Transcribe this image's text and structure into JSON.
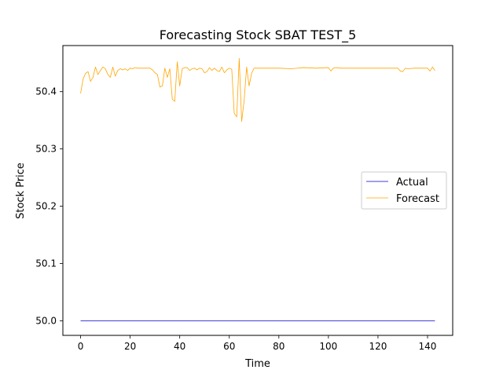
{
  "chart_data": {
    "type": "line",
    "title": "Forecasting Stock SBAT TEST_5",
    "xlabel": "Time",
    "ylabel": "Stock Price",
    "xlim": [
      -7.15,
      150.15
    ],
    "ylim": [
      49.9745,
      50.4805
    ],
    "xticks": [
      0,
      20,
      40,
      60,
      80,
      100,
      120,
      140
    ],
    "xtick_labels": [
      "0",
      "20",
      "40",
      "60",
      "80",
      "100",
      "120",
      "140"
    ],
    "yticks": [
      50.0,
      50.1,
      50.2,
      50.3,
      50.4
    ],
    "ytick_labels": [
      "50.0",
      "50.1",
      "50.2",
      "50.3",
      "50.4"
    ],
    "legend": {
      "position": "center-right",
      "entries": [
        "Actual",
        "Forecast"
      ]
    },
    "grid": false,
    "series": [
      {
        "name": "Actual",
        "color": "#0000cc",
        "x": [
          0,
          143
        ],
        "values": [
          50.0,
          50.0
        ]
      },
      {
        "name": "Forecast",
        "color": "#ffa500",
        "x": [
          0,
          1,
          2,
          3,
          4,
          5,
          6,
          7,
          8,
          9,
          10,
          11,
          12,
          13,
          14,
          15,
          16,
          17,
          18,
          19,
          20,
          21,
          22,
          23,
          24,
          25,
          26,
          27,
          28,
          29,
          30,
          31,
          32,
          33,
          34,
          35,
          36,
          37,
          38,
          39,
          40,
          41,
          42,
          43,
          44,
          45,
          46,
          47,
          48,
          49,
          50,
          51,
          52,
          53,
          54,
          55,
          56,
          57,
          58,
          59,
          60,
          61,
          62,
          63,
          64,
          65,
          66,
          67,
          68,
          69,
          70,
          75,
          80,
          85,
          90,
          95,
          100,
          101,
          102,
          103,
          105,
          110,
          115,
          120,
          125,
          128,
          129,
          130,
          131,
          132,
          135,
          140,
          141,
          142,
          143
        ],
        "values": [
          50.397,
          50.422,
          50.432,
          50.435,
          50.418,
          50.425,
          50.443,
          50.43,
          50.437,
          50.443,
          50.44,
          50.43,
          50.425,
          50.443,
          50.427,
          50.437,
          50.44,
          50.438,
          50.44,
          50.437,
          50.441,
          50.44,
          50.442,
          50.441,
          50.441,
          50.441,
          50.441,
          50.441,
          50.441,
          50.438,
          50.433,
          50.43,
          50.408,
          50.41,
          50.441,
          50.425,
          50.44,
          50.387,
          50.383,
          50.452,
          50.41,
          50.44,
          50.442,
          50.442,
          50.437,
          50.44,
          50.441,
          50.438,
          50.441,
          50.44,
          50.433,
          50.435,
          50.442,
          50.437,
          50.441,
          50.437,
          50.435,
          50.443,
          50.433,
          50.438,
          50.441,
          50.439,
          50.362,
          50.356,
          50.458,
          50.348,
          50.385,
          50.443,
          50.41,
          50.432,
          50.441,
          50.441,
          50.441,
          50.44,
          50.442,
          50.441,
          50.442,
          50.436,
          50.441,
          50.442,
          50.441,
          50.441,
          50.441,
          50.441,
          50.441,
          50.441,
          50.436,
          50.435,
          50.441,
          50.44,
          50.441,
          50.441,
          50.436,
          50.443,
          50.437
        ]
      }
    ]
  }
}
